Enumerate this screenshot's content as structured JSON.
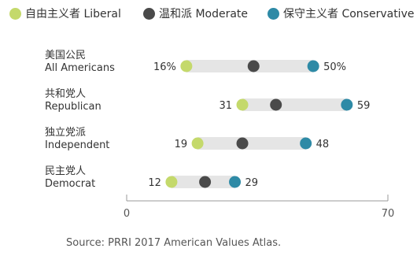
{
  "legend": {
    "items": [
      {
        "label": "自由主义者 Liberal",
        "color": "#c4d96b"
      },
      {
        "label": "温和派 Moderate",
        "color": "#4a4a4a"
      },
      {
        "label": "保守主义者 Conservative",
        "color": "#2e8aa6"
      }
    ]
  },
  "chart_data": {
    "type": "dot",
    "series": [
      {
        "name": "自由主义者 Liberal",
        "color": "#c4d96b"
      },
      {
        "name": "温和派 Moderate",
        "color": "#4a4a4a"
      },
      {
        "name": "保守主义者 Conservative",
        "color": "#2e8aa6"
      }
    ],
    "categories": [
      {
        "label_cn": "美国公民",
        "label_en": "All Americans",
        "liberal": 16,
        "moderate": 34,
        "conservative": 50,
        "liberal_label": "16%",
        "conservative_label": "50%"
      },
      {
        "label_cn": "共和党人",
        "label_en": "Republican",
        "liberal": 31,
        "moderate": 40,
        "conservative": 59,
        "liberal_label": "31",
        "conservative_label": "59"
      },
      {
        "label_cn": "独立党派",
        "label_en": "Independent",
        "liberal": 19,
        "moderate": 31,
        "conservative": 48,
        "liberal_label": "19",
        "conservative_label": "48"
      },
      {
        "label_cn": "民主党人",
        "label_en": "Democrat",
        "liberal": 12,
        "moderate": 21,
        "conservative": 29,
        "liberal_label": "12",
        "conservative_label": "29"
      }
    ],
    "xlim": [
      0,
      70
    ],
    "ticks": [
      "0",
      "70"
    ],
    "colors": {
      "bar": "#e5e5e5",
      "axis": "#999999"
    }
  },
  "source": "Source: PRRI 2017 American Values Atlas."
}
